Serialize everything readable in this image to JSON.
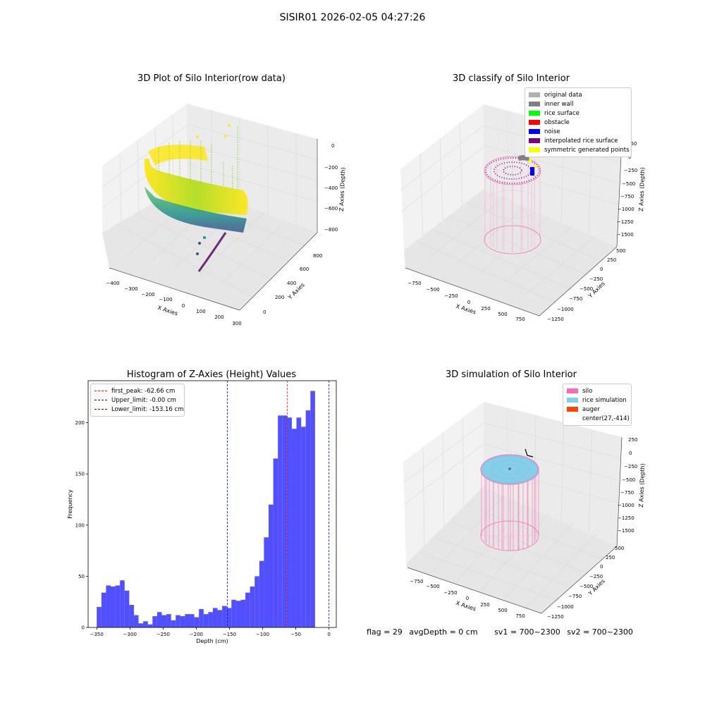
{
  "suptitle": "SISIR01 2026-02-05 04:27:26",
  "panels": {
    "raw": {
      "title": "3D Plot of Silo Interior(row data)",
      "xlabel": "X Axies",
      "ylabel": "Y Axies",
      "zlabel": "Z Axies (Depth)",
      "xticks": [
        "−400",
        "−300",
        "−200",
        "−100",
        "0",
        "100",
        "200",
        "300"
      ],
      "yticks": [
        "0",
        "200",
        "400",
        "600",
        "800"
      ],
      "zticks": [
        "0",
        "−200",
        "−400",
        "−600",
        "−800"
      ]
    },
    "classify": {
      "title": "3D classify of Silo Interior",
      "xlabel": "X Axies",
      "ylabel": "Y Axies",
      "zlabel": "Z Axies (Depth)",
      "xticks": [
        "−750",
        "−500",
        "−250",
        "0",
        "250",
        "500",
        "750"
      ],
      "yticks": [
        "500",
        "250",
        "0",
        "−250",
        "−500",
        "−750",
        "−1000",
        "−1250"
      ],
      "zticks": [
        "250",
        "0",
        "−250",
        "−500",
        "−750",
        "−1000",
        "−1250",
        "−1500"
      ],
      "legend": [
        {
          "label": "original data",
          "color": "#b0b0b0"
        },
        {
          "label": "inner wall",
          "color": "#808080"
        },
        {
          "label": "rice surface",
          "color": "#00ff00"
        },
        {
          "label": "obstacle",
          "color": "#ff0000"
        },
        {
          "label": "noise",
          "color": "#0000ff"
        },
        {
          "label": "interpolated rice surface",
          "color": "#800080"
        },
        {
          "label": "symmetric generated points",
          "color": "#ffff00"
        }
      ]
    },
    "simulation": {
      "title": "3D simulation of Silo Interior",
      "xlabel": "X Axies",
      "ylabel": "Y Axies",
      "zlabel": "Z Axies (Depth)",
      "xticks": [
        "−750",
        "−500",
        "−250",
        "0",
        "250",
        "500",
        "750"
      ],
      "yticks": [
        "500",
        "250",
        "0",
        "−250",
        "−500",
        "−750",
        "−1000",
        "−1250"
      ],
      "zticks": [
        "250",
        "0",
        "−250",
        "−500",
        "−750",
        "−1000",
        "−1250",
        "−1500"
      ],
      "legend": [
        {
          "label": "silo",
          "color": "#ff69b4"
        },
        {
          "label": "rice simulation",
          "color": "#87ceeb"
        },
        {
          "label": "auger",
          "color": "#ff4500"
        },
        {
          "label": "center(27,-414)",
          "color": ""
        }
      ]
    }
  },
  "status": {
    "flag": "flag = 29",
    "avg_depth": "avgDepth = 0 cm",
    "sv1": "sv1 = 700~2300",
    "sv2": "sv2 = 700~2300"
  },
  "chart_data": {
    "type": "bar",
    "title": "Histogram of Z-Axies (Height) Values",
    "xlabel": "Depth (cm)",
    "ylabel": "Frequency",
    "xlim": [
      -363,
      11
    ],
    "ylim": [
      0,
      241
    ],
    "xticks": [
      -350,
      -300,
      -250,
      -200,
      -150,
      -100,
      -50,
      0
    ],
    "xtick_labels": [
      "−350",
      "−300",
      "−250",
      "−200",
      "−150",
      "−100",
      "−50",
      "0"
    ],
    "yticks": [
      0,
      50,
      100,
      150,
      200
    ],
    "bin_start": -350,
    "bin_width": 7,
    "values": [
      20,
      34,
      41,
      40,
      41,
      46,
      36,
      22,
      12,
      4,
      6,
      3,
      11,
      15,
      12,
      13,
      7,
      12,
      11,
      13,
      13,
      10,
      18,
      13,
      15,
      19,
      17,
      21,
      19,
      27,
      26,
      27,
      34,
      40,
      50,
      65,
      88,
      120,
      165,
      207,
      207,
      205,
      194,
      205,
      196,
      212,
      231
    ],
    "colors": {
      "bar": "#5050ff",
      "first_peak": "#ff0000",
      "limit": "#0000ff"
    },
    "lines": [
      {
        "name": "first_peak",
        "label": "first_peak: -62.66 cm",
        "x": -62.66,
        "color": "#ff0000"
      },
      {
        "name": "upper_limit",
        "label": "Upper_limit: -0.00 cm",
        "x": 0,
        "color": "#0000ff"
      },
      {
        "name": "lower_limit",
        "label": "Lower_limit: -153.16 cm",
        "x": -153.16,
        "color": "#0000ff"
      }
    ]
  }
}
